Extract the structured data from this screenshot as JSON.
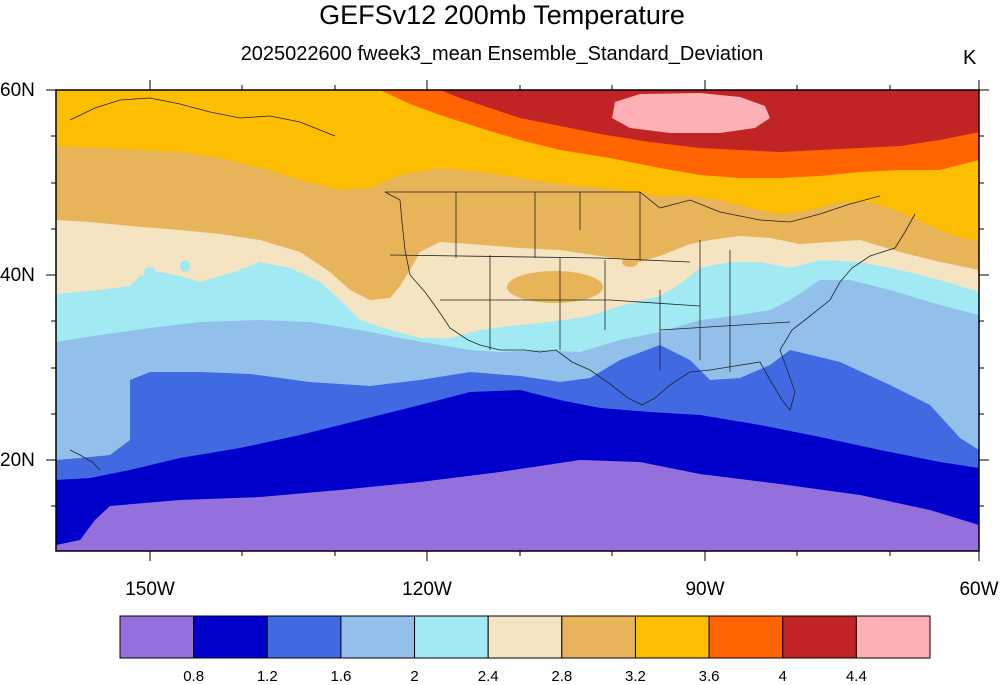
{
  "title": "GEFSv12 200mb Temperature",
  "subtitle": "2025022600 fweek3_mean Ensemble_Standard_Deviation",
  "units": "K",
  "lat_labels": [
    "60N",
    "40N",
    "20N"
  ],
  "lon_labels": [
    "150W",
    "120W",
    "90W",
    "60W"
  ],
  "colorbar": {
    "labels": [
      "0.8",
      "1.2",
      "1.6",
      "2",
      "2.4",
      "2.8",
      "3.2",
      "3.6",
      "4",
      "4.4"
    ],
    "colors": [
      "#9370db",
      "#0000cd",
      "#4169e1",
      "#92c0eb",
      "#a2eaf3",
      "#f4e4c2",
      "#e8b45a",
      "#fdbd00",
      "#ff6400",
      "#c12424",
      "#ffb0b4"
    ]
  }
}
